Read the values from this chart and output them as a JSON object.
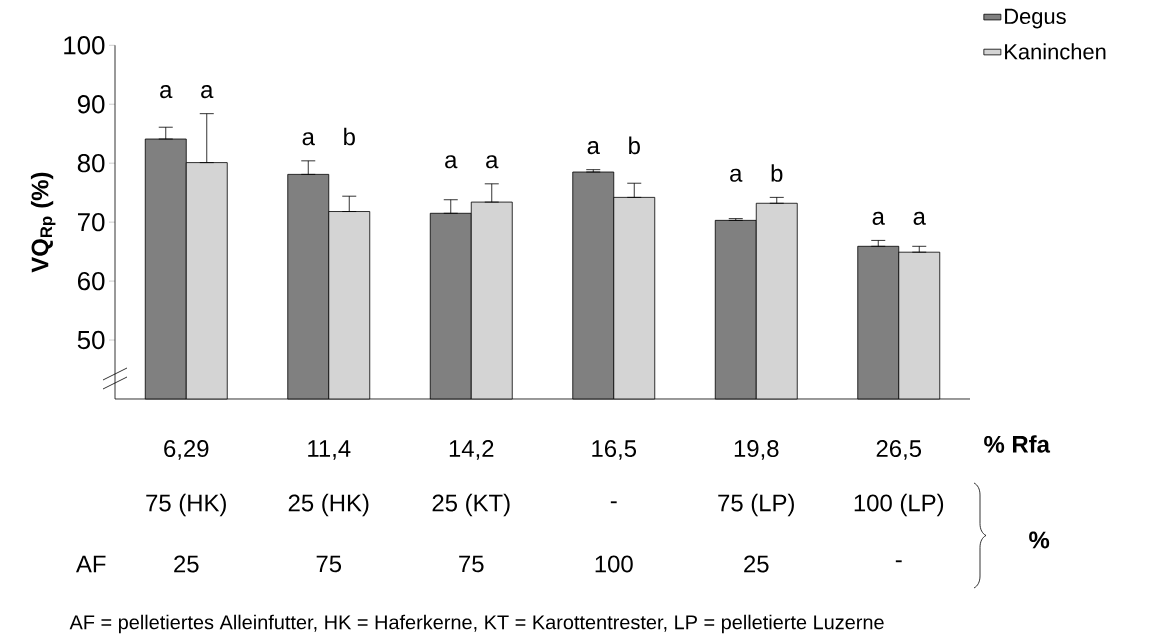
{
  "chart_data": {
    "type": "bar",
    "ylabel": "VQ$_{Rp}$ (%)",
    "categories": [
      "6,29",
      "11,4",
      "14,2",
      "16,5",
      "19,8",
      "26,5"
    ],
    "series": [
      {
        "name": "Degus",
        "color": "#808080",
        "values": [
          84.1,
          78.1,
          71.5,
          78.5,
          70.3,
          65.9
        ],
        "errors": [
          [
            84.1,
            86.1
          ],
          [
            78.1,
            80.4
          ],
          [
            71.5,
            73.8
          ],
          [
            78.5,
            78.9
          ],
          [
            70.3,
            70.6
          ],
          [
            65.9,
            66.9
          ]
        ]
      },
      {
        "name": "Kaninchen",
        "color": "#d4d4d4",
        "values": [
          80.1,
          71.8,
          73.4,
          74.2,
          73.2,
          64.9
        ],
        "errors": [
          [
            80.1,
            88.4
          ],
          [
            71.8,
            74.4
          ],
          [
            73.4,
            76.5
          ],
          [
            74.2,
            76.6
          ],
          [
            73.2,
            74.2
          ],
          [
            64.9,
            65.9
          ]
        ]
      }
    ],
    "ylim": [
      40,
      100
    ],
    "yticks": [
      50,
      60,
      70,
      80,
      90,
      100
    ],
    "legend": "top right",
    "annotations": [
      "a",
      "a",
      "a",
      "b",
      "a",
      "a",
      "a",
      "b",
      "a",
      "b",
      "a",
      "a",
      "% Rfa",
      "75 (HK)",
      "25 (HK)",
      "25 (KT)",
      "-",
      "75 (LP)",
      "100 (LP)",
      "%",
      "AF",
      "25",
      "75",
      "75",
      "100",
      "25",
      "-",
      "AF = pelletiertes Alleinfutter, HK = Haferkerne,  KT = Karottentrester, LP = pelletierte Luzerne"
    ]
  }
}
